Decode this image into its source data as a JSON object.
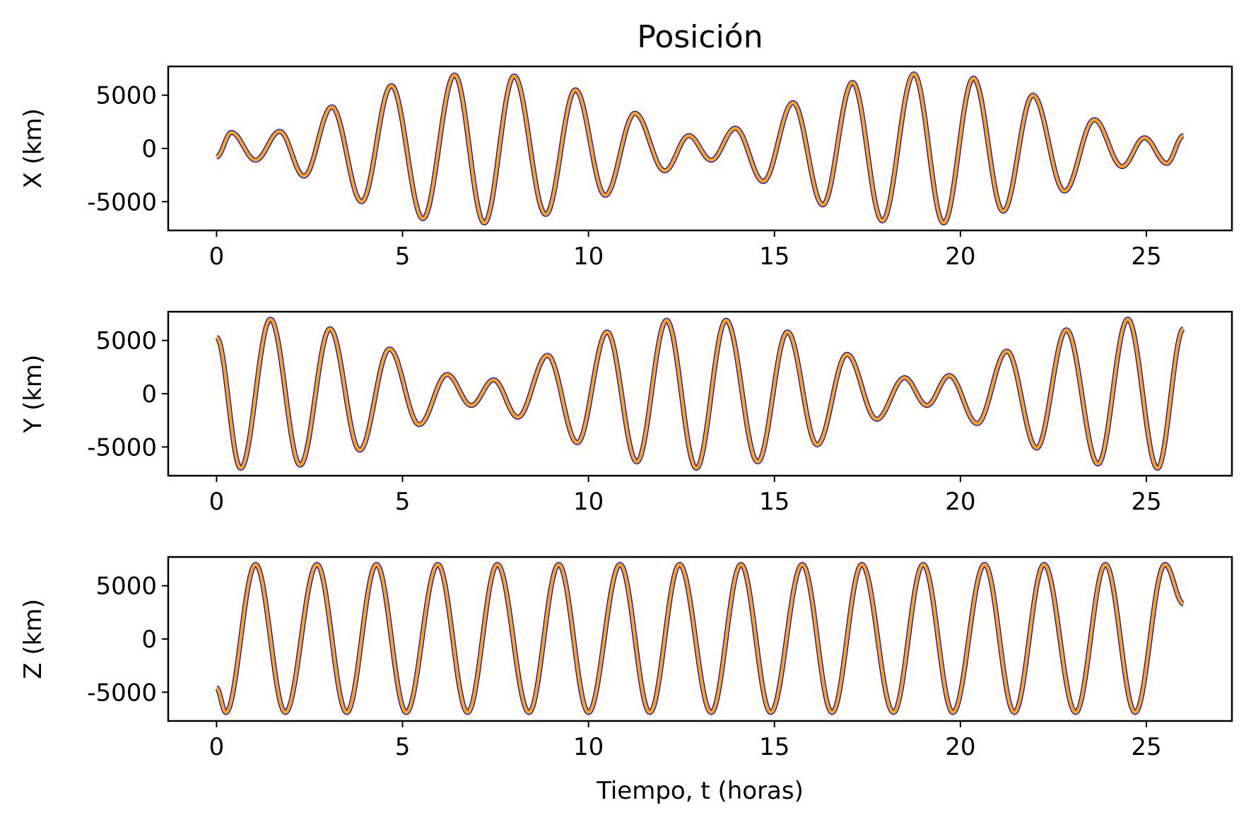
{
  "chart_data": [
    {
      "type": "line",
      "title": "Posición",
      "ylabel": "X (km)",
      "xlabel": "",
      "xlim": [
        -1.3,
        27.3
      ],
      "ylim": [
        -7700,
        7700
      ],
      "xticks": [
        0,
        5,
        10,
        15,
        20,
        25
      ],
      "yticks": [
        5000,
        0,
        -5000
      ],
      "ytick_labels": [
        "5000",
        "0",
        "-5000"
      ],
      "period_hours": 1.62,
      "series": [
        {
          "color": "#0000ff",
          "x": [
            0,
            0.4,
            1.05,
            1.7,
            2.35,
            3.1,
            3.9,
            4.7,
            5.55,
            6.4,
            7.2,
            8.0,
            8.85,
            9.65,
            10.45,
            11.25,
            12.05,
            12.7,
            13.3,
            13.95,
            14.7,
            15.5,
            16.3,
            17.1,
            17.9,
            18.75,
            19.55,
            20.35,
            21.15,
            21.95,
            22.8,
            23.6,
            24.35,
            24.95,
            25.55,
            26.0
          ],
          "y": [
            -800,
            1500,
            -1100,
            1600,
            -2600,
            3900,
            -5000,
            5900,
            -6600,
            6900,
            -7000,
            6800,
            -6200,
            5500,
            -4400,
            3300,
            -2100,
            1200,
            -1100,
            1900,
            -3100,
            4300,
            -5300,
            6200,
            -6800,
            7000,
            -7000,
            6600,
            -5900,
            5000,
            -4000,
            2700,
            -1700,
            1000,
            -1400,
            1200
          ]
        },
        {
          "color": "#ffa500",
          "x": [
            0,
            0.4,
            1.05,
            1.7,
            2.35,
            3.1,
            3.9,
            4.7,
            5.55,
            6.4,
            7.2,
            8.0,
            8.85,
            9.65,
            10.45,
            11.25,
            12.05,
            12.7,
            13.3,
            13.95,
            14.7,
            15.5,
            16.3,
            17.1,
            17.9,
            18.75,
            19.55,
            20.35,
            21.15,
            21.95,
            22.8,
            23.6,
            24.35,
            24.95,
            25.55,
            26.0
          ],
          "y": [
            -800,
            1500,
            -1100,
            1600,
            -2600,
            3900,
            -5000,
            5900,
            -6600,
            6900,
            -7000,
            6800,
            -6200,
            5500,
            -4400,
            3300,
            -2100,
            1200,
            -1100,
            1900,
            -3100,
            4300,
            -5300,
            6200,
            -6800,
            7000,
            -7000,
            6600,
            -5900,
            5000,
            -4000,
            2700,
            -1700,
            1000,
            -1400,
            1200
          ]
        }
      ]
    },
    {
      "type": "line",
      "title": "",
      "ylabel": "Y (km)",
      "xlabel": "",
      "xlim": [
        -1.3,
        27.3
      ],
      "ylim": [
        -7700,
        7700
      ],
      "xticks": [
        0,
        5,
        10,
        15,
        20,
        25
      ],
      "yticks": [
        5000,
        0,
        -5000
      ],
      "ytick_labels": [
        "5000",
        "0",
        "-5000"
      ],
      "period_hours": 1.62,
      "series": [
        {
          "color": "#0000ff",
          "x": [
            0,
            0.65,
            1.45,
            2.25,
            3.05,
            3.85,
            4.65,
            5.45,
            6.2,
            6.85,
            7.45,
            8.1,
            8.9,
            9.7,
            10.5,
            11.3,
            12.1,
            12.9,
            13.7,
            14.55,
            15.35,
            16.15,
            16.95,
            17.75,
            18.5,
            19.1,
            19.7,
            20.45,
            21.25,
            22.05,
            22.85,
            23.7,
            24.5,
            25.3,
            26.0
          ],
          "y": [
            5300,
            -7000,
            7000,
            -6700,
            6100,
            -5300,
            4200,
            -2900,
            1800,
            -1100,
            1300,
            -2200,
            3600,
            -4600,
            5800,
            -6400,
            6900,
            -7000,
            6900,
            -6400,
            5800,
            -4800,
            3700,
            -2400,
            1500,
            -1100,
            1700,
            -2800,
            4000,
            -5100,
            6000,
            -6600,
            7000,
            -7000,
            6100
          ]
        },
        {
          "color": "#ffa500",
          "x": [
            0,
            0.65,
            1.45,
            2.25,
            3.05,
            3.85,
            4.65,
            5.45,
            6.2,
            6.85,
            7.45,
            8.1,
            8.9,
            9.7,
            10.5,
            11.3,
            12.1,
            12.9,
            13.7,
            14.55,
            15.35,
            16.15,
            16.95,
            17.75,
            18.5,
            19.1,
            19.7,
            20.45,
            21.25,
            22.05,
            22.85,
            23.7,
            24.5,
            25.3,
            26.0
          ],
          "y": [
            5300,
            -7000,
            7000,
            -6700,
            6100,
            -5300,
            4200,
            -2900,
            1800,
            -1100,
            1300,
            -2200,
            3600,
            -4600,
            5800,
            -6400,
            6900,
            -7000,
            6900,
            -6400,
            5800,
            -4800,
            3700,
            -2400,
            1500,
            -1100,
            1700,
            -2800,
            4000,
            -5100,
            6000,
            -6600,
            7000,
            -7000,
            6100
          ]
        }
      ]
    },
    {
      "type": "line",
      "title": "",
      "ylabel": "Z (km)",
      "xlabel": "Tiempo, t (horas)",
      "xlim": [
        -1.3,
        27.3
      ],
      "ylim": [
        -7700,
        7700
      ],
      "xticks": [
        0,
        5,
        10,
        15,
        20,
        25
      ],
      "yticks": [
        5000,
        0,
        -5000
      ],
      "ytick_labels": [
        "5000",
        "0",
        "-5000"
      ],
      "period_hours": 1.62,
      "series": [
        {
          "color": "#0000ff",
          "x": [
            0,
            0.25,
            1.05,
            1.85,
            2.7,
            3.5,
            4.3,
            5.1,
            5.95,
            6.75,
            7.55,
            8.4,
            9.2,
            10.0,
            10.85,
            11.65,
            12.45,
            13.3,
            14.1,
            14.9,
            15.75,
            16.55,
            17.35,
            18.2,
            19.0,
            19.8,
            20.65,
            21.45,
            22.25,
            23.1,
            23.9,
            24.7,
            25.5,
            26.0
          ],
          "y": [
            -4600,
            -6900,
            7000,
            -6900,
            7000,
            -6900,
            7000,
            -6900,
            7000,
            -6900,
            7000,
            -6900,
            7000,
            -6900,
            7000,
            -6900,
            7000,
            -6900,
            7000,
            -6900,
            7000,
            -6900,
            7000,
            -6900,
            7000,
            -6900,
            7000,
            -6900,
            7000,
            -6900,
            7000,
            -6900,
            7000,
            3300
          ]
        },
        {
          "color": "#ffa500",
          "x": [
            0,
            0.25,
            1.05,
            1.85,
            2.7,
            3.5,
            4.3,
            5.1,
            5.95,
            6.75,
            7.55,
            8.4,
            9.2,
            10.0,
            10.85,
            11.65,
            12.45,
            13.3,
            14.1,
            14.9,
            15.75,
            16.55,
            17.35,
            18.2,
            19.0,
            19.8,
            20.65,
            21.45,
            22.25,
            23.1,
            23.9,
            24.7,
            25.5,
            26.0
          ],
          "y": [
            -4600,
            -6900,
            7000,
            -6900,
            7000,
            -6900,
            7000,
            -6900,
            7000,
            -6900,
            7000,
            -6900,
            7000,
            -6900,
            7000,
            -6900,
            7000,
            -6900,
            7000,
            -6900,
            7000,
            -6900,
            7000,
            -6900,
            7000,
            -6900,
            7000,
            -6900,
            7000,
            -6900,
            7000,
            -6900,
            7000,
            3300
          ]
        }
      ]
    }
  ]
}
